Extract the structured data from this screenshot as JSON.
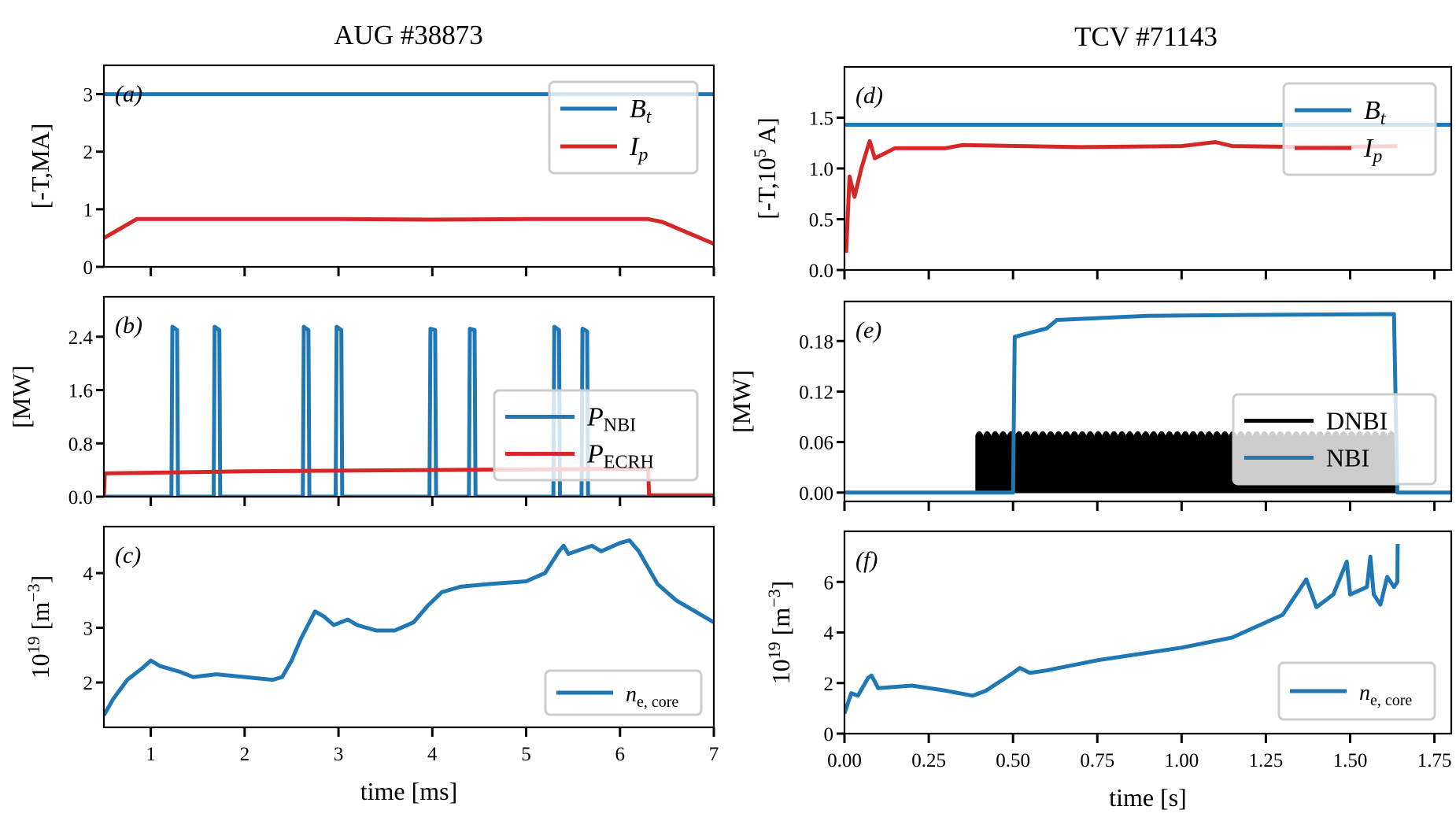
{
  "figure": {
    "left_title": "AUG #38873",
    "right_title": "TCV #71143"
  },
  "colors": {
    "blue": "#1f77b4",
    "red": "#d62728",
    "black": "#000000"
  },
  "chart_data": [
    {
      "panel": "(a)",
      "type": "line",
      "column": "AUG #38873",
      "ylabel": "[-T,MA]",
      "xlabel": "",
      "xlim": [
        0.5,
        7
      ],
      "ylim": [
        0,
        3.5
      ],
      "yticks": [
        0,
        1,
        2,
        3
      ],
      "yticklabels": [
        "0",
        "1",
        "2",
        "3"
      ],
      "xticks": [
        1,
        2,
        3,
        4,
        5,
        6,
        7
      ],
      "xticklabels": [],
      "legend": "upper-right",
      "series": [
        {
          "name": "B_t",
          "name_main": "B",
          "name_sub": "t",
          "color": "#1f77b4",
          "x": [
            0.5,
            7
          ],
          "y": [
            3.0,
            3.0
          ]
        },
        {
          "name": "I_p",
          "name_main": "I",
          "name_sub": "p",
          "color": "#d62728",
          "x": [
            0.5,
            0.85,
            2.0,
            3.0,
            4.0,
            5.0,
            6.3,
            6.45,
            7.0
          ],
          "y": [
            0.5,
            0.83,
            0.83,
            0.83,
            0.82,
            0.83,
            0.83,
            0.78,
            0.4
          ]
        }
      ]
    },
    {
      "panel": "(b)",
      "type": "line",
      "column": "AUG #38873",
      "ylabel": "[MW]",
      "xlabel": "",
      "xlim": [
        0.5,
        7
      ],
      "ylim": [
        0,
        3.0
      ],
      "yticks": [
        0,
        0.8,
        1.6,
        2.4
      ],
      "yticklabels": [
        "0.0",
        "0.8",
        "1.6",
        "2.4"
      ],
      "xticks": [
        1,
        2,
        3,
        4,
        5,
        6,
        7
      ],
      "xticklabels": [],
      "legend": "center-right",
      "series": [
        {
          "name": "P_NBI",
          "name_main": "P",
          "name_sub": "NBI",
          "color": "#1f77b4",
          "x": [
            0.5,
            1.22,
            1.23,
            1.28,
            1.29,
            1.67,
            1.68,
            1.73,
            1.74,
            2.62,
            2.63,
            2.68,
            2.69,
            2.97,
            2.98,
            3.03,
            3.04,
            3.97,
            3.98,
            4.03,
            4.04,
            4.39,
            4.4,
            4.45,
            4.46,
            5.29,
            5.3,
            5.35,
            5.36,
            5.59,
            5.6,
            5.65,
            5.66,
            7.0
          ],
          "y": [
            0,
            0,
            2.55,
            2.5,
            0,
            0,
            2.55,
            2.5,
            0,
            0,
            2.55,
            2.5,
            0,
            0,
            2.55,
            2.5,
            0,
            0,
            2.52,
            2.5,
            0,
            0,
            2.52,
            2.5,
            0,
            0,
            2.55,
            2.5,
            0,
            0,
            2.52,
            2.48,
            0,
            0
          ]
        },
        {
          "name": "P_ECRH",
          "name_main": "P",
          "name_sub": "ECRH",
          "color": "#d62728",
          "x": [
            0.5,
            0.51,
            2.0,
            4.0,
            6.3,
            6.31,
            7.0
          ],
          "y": [
            0,
            0.35,
            0.38,
            0.4,
            0.42,
            0.02,
            0.02
          ]
        }
      ]
    },
    {
      "panel": "(c)",
      "type": "line",
      "column": "AUG #38873",
      "ylabel": "10^19 [m^-3]",
      "ylabel_main": "10",
      "ylabel_exp": "19",
      "ylabel_unit": " [m",
      "ylabel_unit_exp": "−3",
      "ylabel_close": "]",
      "xlabel": "time [ms]",
      "xlim": [
        0.5,
        7
      ],
      "ylim": [
        1.18,
        4.85
      ],
      "yticks": [
        2,
        3,
        4
      ],
      "yticklabels": [
        "2",
        "3",
        "4"
      ],
      "xticks": [
        1,
        2,
        3,
        4,
        5,
        6,
        7
      ],
      "xticklabels": [
        "1",
        "2",
        "3",
        "4",
        "5",
        "6",
        "7"
      ],
      "legend": "lower-right",
      "series": [
        {
          "name": "n_e,core",
          "name_main": "n",
          "name_sub": "e, core",
          "color": "#1f77b4",
          "x": [
            0.5,
            0.6,
            0.75,
            0.9,
            1.0,
            1.1,
            1.3,
            1.45,
            1.7,
            2.0,
            2.3,
            2.4,
            2.5,
            2.6,
            2.75,
            2.85,
            2.95,
            3.1,
            3.2,
            3.4,
            3.6,
            3.8,
            3.95,
            4.1,
            4.3,
            4.6,
            5.0,
            5.2,
            5.35,
            5.4,
            5.45,
            5.7,
            5.8,
            6.0,
            6.1,
            6.2,
            6.4,
            6.6,
            6.8,
            7.0
          ],
          "y": [
            1.4,
            1.7,
            2.05,
            2.25,
            2.4,
            2.3,
            2.2,
            2.1,
            2.15,
            2.1,
            2.05,
            2.1,
            2.4,
            2.8,
            3.3,
            3.2,
            3.05,
            3.15,
            3.05,
            2.95,
            2.95,
            3.1,
            3.4,
            3.65,
            3.75,
            3.8,
            3.85,
            4.0,
            4.4,
            4.5,
            4.35,
            4.5,
            4.4,
            4.55,
            4.6,
            4.4,
            3.8,
            3.5,
            3.3,
            3.1
          ]
        }
      ]
    },
    {
      "panel": "(d)",
      "type": "line",
      "column": "TCV #71143",
      "ylabel": "[-T,10^5 A]",
      "ylabel_pre": "[-T,10",
      "ylabel_exp": "5",
      "ylabel_post": " A]",
      "xlabel": "",
      "xlim": [
        0,
        1.8
      ],
      "ylim": [
        0,
        2.0
      ],
      "yticks": [
        0,
        0.5,
        1.0,
        1.5
      ],
      "yticklabels": [
        "0.0",
        "0.5",
        "1.0",
        "1.5"
      ],
      "xticks": [
        0,
        0.25,
        0.5,
        0.75,
        1.0,
        1.25,
        1.5,
        1.75
      ],
      "xticklabels": [],
      "legend": "upper-right",
      "series": [
        {
          "name": "B_t",
          "name_main": "B",
          "name_sub": "t",
          "color": "#1f77b4",
          "x": [
            0,
            1.8
          ],
          "y": [
            1.43,
            1.43
          ]
        },
        {
          "name": "I_p",
          "name_main": "I",
          "name_sub": "p",
          "color": "#d62728",
          "x": [
            0.005,
            0.015,
            0.03,
            0.05,
            0.07,
            0.075,
            0.09,
            0.15,
            0.3,
            0.35,
            0.7,
            1.0,
            1.1,
            1.15,
            1.4,
            1.64
          ],
          "y": [
            0.17,
            0.92,
            0.72,
            1.0,
            1.22,
            1.27,
            1.1,
            1.2,
            1.2,
            1.23,
            1.21,
            1.22,
            1.26,
            1.22,
            1.21,
            1.22
          ]
        }
      ]
    },
    {
      "panel": "(e)",
      "type": "line",
      "column": "TCV #71143",
      "ylabel": "[MW]",
      "xlabel": "",
      "xlim": [
        0,
        1.8
      ],
      "ylim": [
        -0.0105,
        0.227
      ],
      "yticks": [
        0,
        0.06,
        0.12,
        0.18
      ],
      "yticklabels": [
        "0.00",
        "0.06",
        "0.12",
        "0.18"
      ],
      "xticks": [
        0,
        0.25,
        0.5,
        0.75,
        1.0,
        1.25,
        1.5,
        1.75
      ],
      "xticklabels": [],
      "legend": "lower-right",
      "series": [
        {
          "name": "DNBI",
          "color": "#000000",
          "pulsed": true,
          "pulse_start": 0.39,
          "pulse_end": 1.64,
          "pulse_period": 0.0235,
          "amplitude": 0.073
        },
        {
          "name": "NBI",
          "color": "#1f77b4",
          "x": [
            0,
            0.5,
            0.505,
            0.6,
            0.615,
            0.63,
            0.9,
            1.2,
            1.63,
            1.64,
            1.8
          ],
          "y": [
            0,
            0,
            0.185,
            0.195,
            0.2,
            0.205,
            0.21,
            0.211,
            0.212,
            0,
            0
          ]
        }
      ]
    },
    {
      "panel": "(f)",
      "type": "line",
      "column": "TCV #71143",
      "ylabel": "10^19 [m^-3]",
      "ylabel_main": "10",
      "ylabel_exp": "19",
      "ylabel_unit": " [m",
      "ylabel_unit_exp": "−3",
      "ylabel_close": "]",
      "xlabel": "time [s]",
      "xlim": [
        0,
        1.8
      ],
      "ylim": [
        0,
        8
      ],
      "yticks": [
        0,
        2,
        4,
        6
      ],
      "yticklabels": [
        "0",
        "2",
        "4",
        "6"
      ],
      "xticks": [
        0,
        0.25,
        0.5,
        0.75,
        1.0,
        1.25,
        1.5,
        1.75
      ],
      "xticklabels": [
        "0.00",
        "0.25",
        "0.50",
        "0.75",
        "1.00",
        "1.25",
        "1.50",
        "1.75"
      ],
      "legend": "lower-right",
      "series": [
        {
          "name": "n_e,core",
          "name_main": "n",
          "name_sub": "e, core",
          "color": "#1f77b4",
          "x": [
            0,
            0.02,
            0.04,
            0.07,
            0.08,
            0.1,
            0.2,
            0.3,
            0.38,
            0.42,
            0.5,
            0.52,
            0.55,
            0.6,
            0.75,
            1.0,
            1.15,
            1.3,
            1.37,
            1.4,
            1.45,
            1.49,
            1.5,
            1.55,
            1.56,
            1.57,
            1.59,
            1.61,
            1.63,
            1.64,
            1.641
          ],
          "y": [
            0.8,
            1.6,
            1.5,
            2.2,
            2.3,
            1.8,
            1.9,
            1.7,
            1.5,
            1.7,
            2.4,
            2.6,
            2.4,
            2.5,
            2.9,
            3.4,
            3.8,
            4.7,
            6.1,
            5.0,
            5.5,
            6.8,
            5.5,
            5.8,
            7.0,
            5.5,
            5.1,
            6.2,
            5.8,
            6.0,
            7.5
          ]
        }
      ]
    }
  ]
}
